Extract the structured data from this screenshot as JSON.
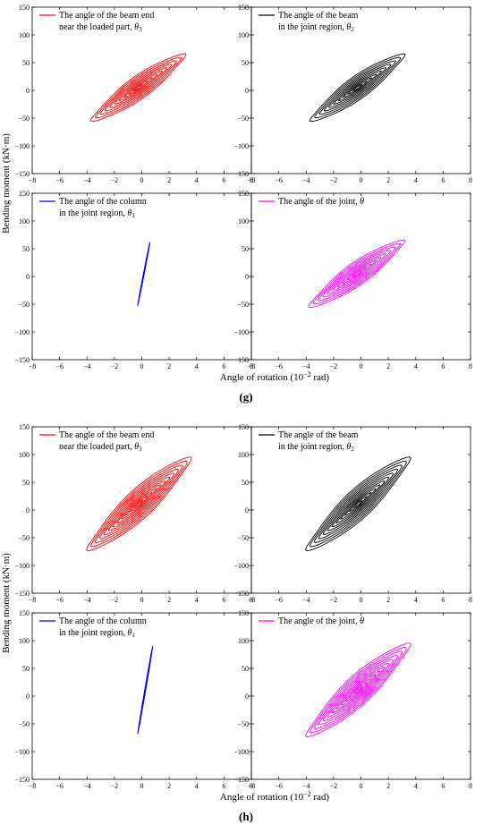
{
  "colors": {
    "theta3": "#ff0000",
    "theta2": "#000000",
    "theta1": "#0000ff",
    "theta": "#ff00ff"
  },
  "axes": {
    "ylabel": "Bending moment (kN·m)",
    "xlabel_main": "Angle of rotation (10",
    "xlabel_exp": "−2",
    "xlabel_tail": " rad)",
    "xticks": [
      -8,
      -6,
      -4,
      -2,
      0,
      2,
      4,
      6,
      8
    ],
    "yticks": [
      -150,
      -100,
      -50,
      0,
      50,
      100,
      150
    ],
    "xlim": [
      -8,
      8
    ],
    "ylim": [
      -150,
      150
    ]
  },
  "panels": [
    {
      "label": "(g)",
      "subplots": [
        {
          "key": "theta3",
          "legend_line1": "The angle of the beam end",
          "legend_line2": "near the loaded part, ",
          "legend_sym": "θ",
          "legend_sub": "3"
        },
        {
          "key": "theta2",
          "legend_line1": "The angle of the beam",
          "legend_line2": "in the joint region, ",
          "legend_sym": "θ",
          "legend_sub": "2"
        },
        {
          "key": "theta1",
          "legend_line1": "The angle of the column",
          "legend_line2": "in the joint region, ",
          "legend_sym": "θ",
          "legend_sub": "1"
        },
        {
          "key": "theta",
          "legend_line1": "The angle of the joint, ",
          "legend_line2": "",
          "legend_sym": "θ",
          "legend_sub": ""
        }
      ]
    },
    {
      "label": "(h)",
      "subplots": [
        {
          "key": "theta3",
          "legend_line1": "The angle of the beam end",
          "legend_line2": "near the loaded part, ",
          "legend_sym": "θ",
          "legend_sub": "3"
        },
        {
          "key": "theta2",
          "legend_line1": "The angle of the beam",
          "legend_line2": "in the joint region, ",
          "legend_sym": "θ",
          "legend_sub": "2"
        },
        {
          "key": "theta1",
          "legend_line1": "The angle of the column",
          "legend_line2": "in the joint region, ",
          "legend_sym": "θ",
          "legend_sub": "1"
        },
        {
          "key": "theta",
          "legend_line1": "The angle of the joint, ",
          "legend_line2": "",
          "legend_sym": "θ",
          "legend_sub": ""
        }
      ]
    }
  ],
  "chart_data": [
    {
      "type": "line",
      "panel": "(g)",
      "series": [
        {
          "name": "The angle of the beam end near the loaded part, θ3",
          "x_range": [
            -3.7,
            3.2
          ],
          "y_range": [
            -52,
            62
          ],
          "loops": 10
        }
      ]
    },
    {
      "type": "line",
      "panel": "(g)",
      "series": [
        {
          "name": "The angle of the beam in the joint region, θ2",
          "x_range": [
            -3.7,
            3.2
          ],
          "y_range": [
            -52,
            62
          ],
          "loops": 10
        }
      ]
    },
    {
      "type": "line",
      "panel": "(g)",
      "series": [
        {
          "name": "The angle of the column in the joint region, θ1",
          "x_range": [
            -0.3,
            0.6
          ],
          "y_range": [
            -52,
            62
          ],
          "loops": 10
        }
      ]
    },
    {
      "type": "line",
      "panel": "(g)",
      "series": [
        {
          "name": "The angle of the joint, θ",
          "x_range": [
            -3.8,
            3.2
          ],
          "y_range": [
            -52,
            62
          ],
          "loops": 10
        }
      ]
    },
    {
      "type": "line",
      "panel": "(h)",
      "series": [
        {
          "name": "The angle of the beam end near the loaded part, θ3",
          "x_range": [
            -4.0,
            3.6
          ],
          "y_range": [
            -68,
            90
          ],
          "loops": 12
        }
      ]
    },
    {
      "type": "line",
      "panel": "(h)",
      "series": [
        {
          "name": "The angle of the beam in the joint region, θ2",
          "x_range": [
            -4.0,
            3.6
          ],
          "y_range": [
            -68,
            90
          ],
          "loops": 12
        }
      ]
    },
    {
      "type": "line",
      "panel": "(h)",
      "series": [
        {
          "name": "The angle of the column in the joint region, θ1",
          "x_range": [
            -0.3,
            0.8
          ],
          "y_range": [
            -68,
            90
          ],
          "loops": 12
        }
      ]
    },
    {
      "type": "line",
      "panel": "(h)",
      "series": [
        {
          "name": "The angle of the joint, θ",
          "x_range": [
            -4.0,
            3.6
          ],
          "y_range": [
            -68,
            90
          ],
          "loops": 12
        }
      ]
    }
  ]
}
